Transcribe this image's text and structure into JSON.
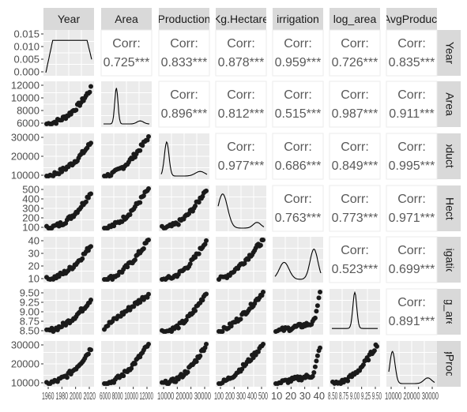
{
  "chart_data": {
    "type": "scatter-matrix",
    "variables": [
      "Year",
      "Area",
      "Production",
      "Kg.Hectare",
      "irrigation",
      "log_area",
      "logAvgProduction"
    ],
    "diagonal_plot": "density",
    "upper_panel_label": "Corr:",
    "correlations": [
      {
        "row": 0,
        "col": 1,
        "value": "0.725***"
      },
      {
        "row": 0,
        "col": 2,
        "value": "0.833***"
      },
      {
        "row": 0,
        "col": 3,
        "value": "0.878***"
      },
      {
        "row": 0,
        "col": 4,
        "value": "0.959***"
      },
      {
        "row": 0,
        "col": 5,
        "value": "0.726***"
      },
      {
        "row": 0,
        "col": 6,
        "value": "0.835***"
      },
      {
        "row": 1,
        "col": 2,
        "value": "0.896***"
      },
      {
        "row": 1,
        "col": 3,
        "value": "0.812***"
      },
      {
        "row": 1,
        "col": 4,
        "value": "0.515***"
      },
      {
        "row": 1,
        "col": 5,
        "value": "0.987***"
      },
      {
        "row": 1,
        "col": 6,
        "value": "0.911***"
      },
      {
        "row": 2,
        "col": 3,
        "value": "0.977***"
      },
      {
        "row": 2,
        "col": 4,
        "value": "0.686***"
      },
      {
        "row": 2,
        "col": 5,
        "value": "0.849***"
      },
      {
        "row": 2,
        "col": 6,
        "value": "0.995***"
      },
      {
        "row": 3,
        "col": 4,
        "value": "0.763***"
      },
      {
        "row": 3,
        "col": 5,
        "value": "0.773***"
      },
      {
        "row": 3,
        "col": 6,
        "value": "0.971***"
      },
      {
        "row": 4,
        "col": 5,
        "value": "0.523***"
      },
      {
        "row": 4,
        "col": 6,
        "value": "0.699***"
      },
      {
        "row": 5,
        "col": 6,
        "value": "0.891***"
      }
    ],
    "y_ticks": [
      [
        "0.015",
        "0.010",
        "0.005",
        "0.000"
      ],
      [
        "12000",
        "10000",
        "8000",
        "6000"
      ],
      [
        "30000",
        "20000",
        "10000"
      ],
      [
        "500",
        "400",
        "300",
        "200",
        "100"
      ],
      [
        "40",
        "30",
        "20",
        "10"
      ],
      [
        "9.50",
        "9.25",
        "9.00",
        "8.75",
        "8.50"
      ],
      [
        "30000",
        "20000",
        "10000"
      ]
    ],
    "x_ticks": [
      "1960 1980 2000 2020",
      "6000 8000 10000 12000",
      "10000 20000 30000",
      "100 200 300 400 500",
      "10 20 30 40",
      "8.50 8.75 9.00 9.25 9.50",
      "10000 20000 30000"
    ],
    "colors": {
      "panel": "#ebebeb",
      "grid": "#ffffff",
      "strip": "#d9d9d9",
      "points": "#1a1a1a",
      "corr_text": "#595959"
    }
  }
}
